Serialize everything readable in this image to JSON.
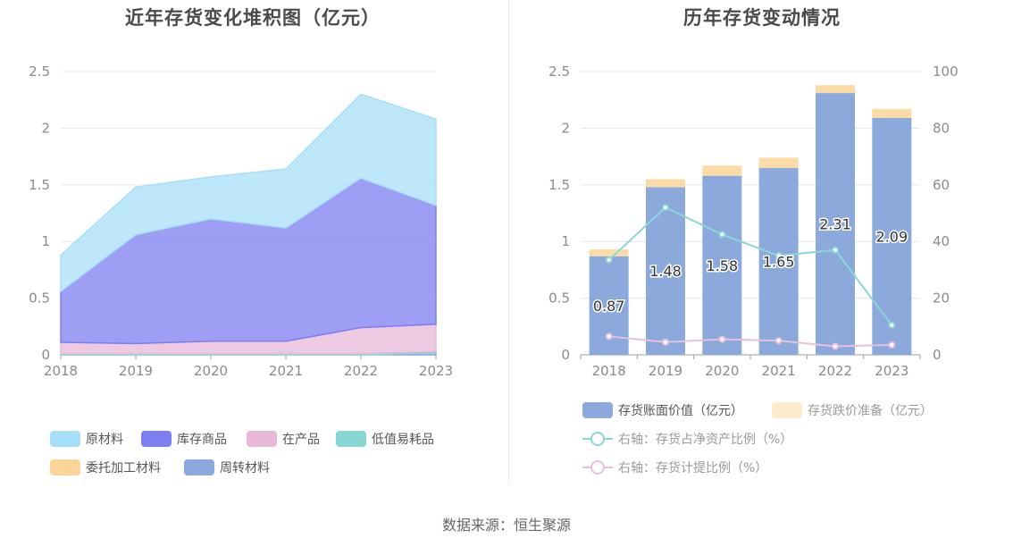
{
  "source_label": "数据来源：恒生聚源",
  "chart_data": [
    {
      "type": "area",
      "stacked": true,
      "title": "近年存货变化堆积图（亿元）",
      "categories": [
        "2018",
        "2019",
        "2020",
        "2021",
        "2022",
        "2023"
      ],
      "ylim": [
        0,
        2.5
      ],
      "yticks": [
        "0",
        "0.5",
        "1",
        "1.5",
        "2",
        "2.5"
      ],
      "legend_position": "bottom",
      "series": [
        {
          "name": "原材料",
          "color": "#a8dff8",
          "values": [
            0.32,
            0.42,
            0.37,
            0.52,
            0.74,
            0.76
          ]
        },
        {
          "name": "库存商品",
          "color": "#7d7ff0",
          "values": [
            0.45,
            0.96,
            1.08,
            1.0,
            1.32,
            1.05
          ]
        },
        {
          "name": "在产品",
          "color": "#e8b8d8",
          "values": [
            0.1,
            0.09,
            0.11,
            0.11,
            0.23,
            0.24
          ]
        },
        {
          "name": "低值易耗品",
          "color": "#86d6d4",
          "values": [
            0.01,
            0.01,
            0.01,
            0.01,
            0.01,
            0.01
          ]
        },
        {
          "name": "委托加工材料",
          "color": "#fdd59a",
          "values": [
            0.0,
            0.0,
            0.0,
            0.0,
            0.0,
            0.0
          ]
        },
        {
          "name": "周转材料",
          "color": "#8ba9dd",
          "values": [
            0.0,
            0.0,
            0.0,
            0.0,
            0.0,
            0.02
          ]
        }
      ]
    },
    {
      "type": "bar",
      "stacked": true,
      "title": "历年存货变动情况",
      "categories": [
        "2018",
        "2019",
        "2020",
        "2021",
        "2022",
        "2023"
      ],
      "ylim": [
        0,
        2.5
      ],
      "yticks": [
        "0",
        "0.5",
        "1",
        "1.5",
        "2",
        "2.5"
      ],
      "y2lim": [
        0,
        100
      ],
      "y2ticks": [
        "0",
        "20",
        "40",
        "60",
        "80",
        "100"
      ],
      "legend_position": "bottom",
      "bars": [
        {
          "name": "存货账面价值（亿元）",
          "color": "#8ca9db",
          "values": [
            0.87,
            1.48,
            1.58,
            1.65,
            2.31,
            2.09
          ],
          "labels": [
            "0.87",
            "1.48",
            "1.58",
            "1.65",
            "2.31",
            "2.09"
          ]
        },
        {
          "name": "存货跌价准备（亿元）",
          "color": "#fddba6",
          "values": [
            0.06,
            0.07,
            0.09,
            0.09,
            0.07,
            0.08
          ]
        }
      ],
      "lines": [
        {
          "name": "右轴：存货占净资产比例（%）",
          "color": "#8cd5d8",
          "values": [
            33.5,
            52.0,
            42.5,
            35.0,
            37.0,
            10.5
          ]
        },
        {
          "name": "右轴：存货计提比例（%）",
          "color": "#e9bfdd",
          "values": [
            6.5,
            4.5,
            5.5,
            5.0,
            3.0,
            3.5
          ]
        }
      ]
    }
  ]
}
